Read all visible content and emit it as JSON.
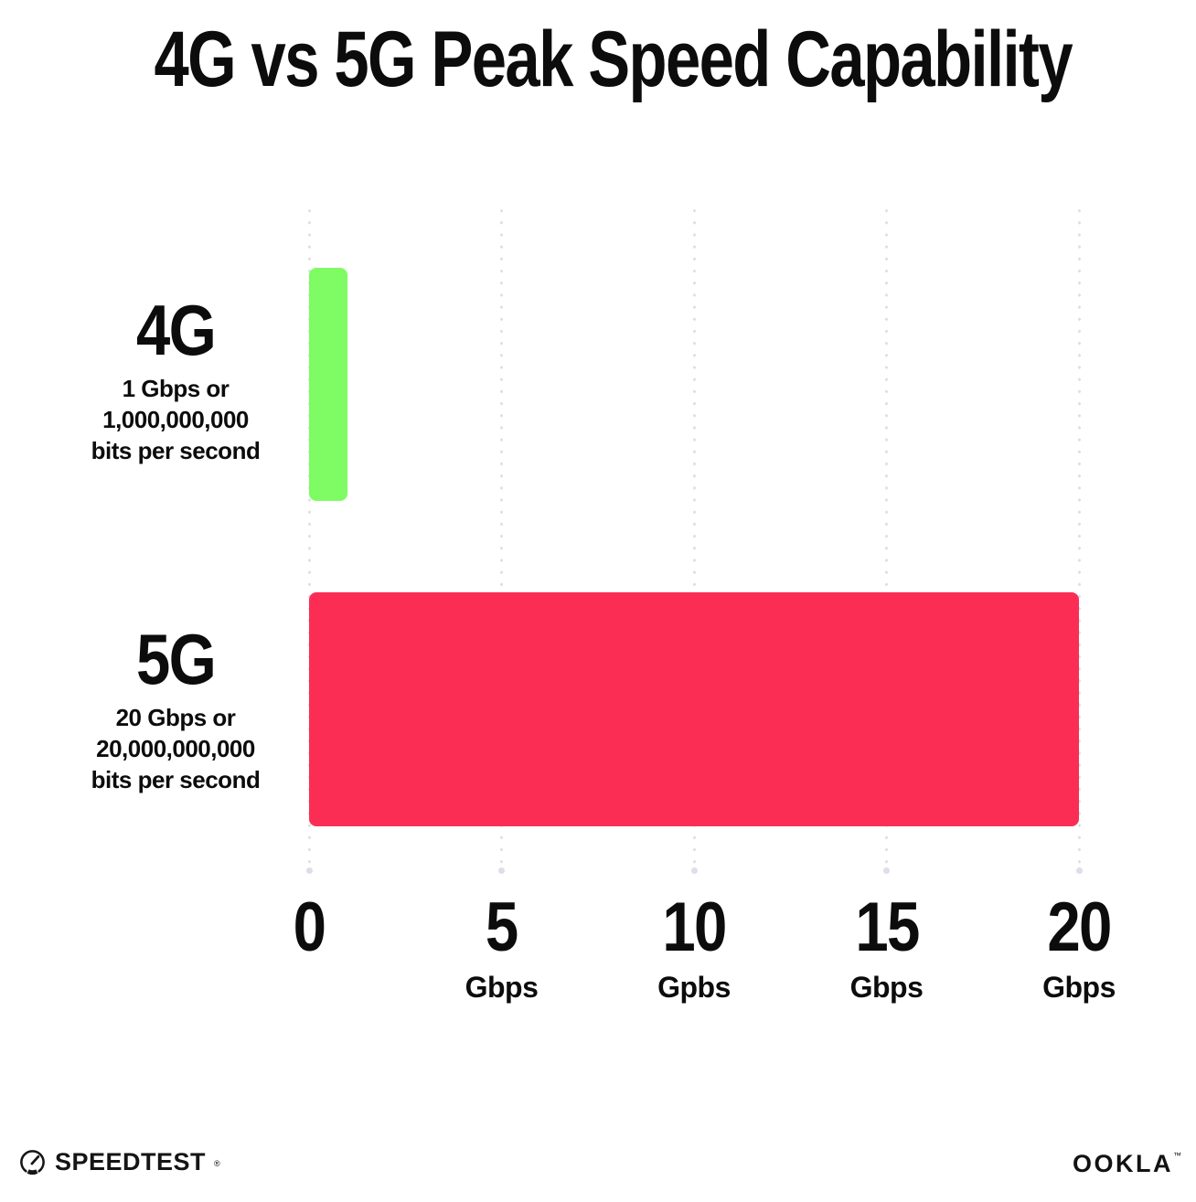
{
  "title": "4G vs 5G Peak Speed Capability",
  "chart_data": {
    "type": "bar",
    "orientation": "horizontal",
    "title": "4G vs 5G Peak Speed Capability",
    "categories": [
      "4G",
      "5G"
    ],
    "values": [
      1,
      20
    ],
    "value_unit": "Gbps",
    "xlabel": "",
    "ylabel": "",
    "xlim": [
      0,
      20
    ],
    "x_tick_values": [
      0,
      5,
      10,
      15,
      20
    ],
    "x_tick_labels": [
      {
        "number": "0",
        "unit": ""
      },
      {
        "number": "5",
        "unit": "Gbps"
      },
      {
        "number": "10",
        "unit": "Gpbs"
      },
      {
        "number": "15",
        "unit": "Gbps"
      },
      {
        "number": "20",
        "unit": "Gbps"
      }
    ],
    "grid": "vertical-dotted",
    "legend": "none",
    "bar_colors": [
      "#7ffb63",
      "#fc2d55"
    ],
    "annotations": [
      {
        "category": "4G",
        "lines": [
          "1 Gbps or",
          "1,000,000,000",
          "bits per second"
        ]
      },
      {
        "category": "5G",
        "lines": [
          "20 Gbps or",
          "20,000,000,000",
          "bits per second"
        ]
      }
    ]
  },
  "colors": {
    "bar_4g": "#7ffb63",
    "bar_5g": "#fc2d55",
    "grid_dot": "#dddeea",
    "text": "#0c0c0c",
    "background": "#ffffff"
  },
  "footer": {
    "speedtest_text": "SPEEDTEST",
    "speedtest_mark": "®",
    "speedtest_icon": "speedometer-icon",
    "ookla_text": "OOKLA",
    "ookla_mark": "™"
  }
}
